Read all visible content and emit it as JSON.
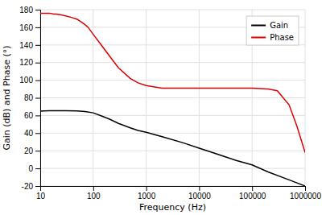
{
  "chart_data": {
    "type": "line",
    "xlabel": "Frequency (Hz)",
    "ylabel": "Gain (dB) and Phase (°)",
    "log": "x",
    "xlim": [
      10,
      1000000
    ],
    "ylim": [
      -20,
      180
    ],
    "xticks": [
      10,
      100,
      1000,
      10000,
      100000,
      1000000
    ],
    "yticks": [
      -20,
      0,
      20,
      40,
      60,
      80,
      100,
      120,
      140,
      160,
      180
    ],
    "grid": true,
    "legend": "upper right",
    "series": [
      {
        "name": "Gain",
        "color": "#000000",
        "x": [
          10,
          12,
          15,
          20,
          30,
          50,
          70,
          100,
          150,
          200,
          300,
          500,
          700,
          1000,
          2000,
          5000,
          10000,
          20000,
          50000,
          100000,
          200000,
          500000,
          1000000
        ],
        "values": [
          65,
          65.2,
          65.3,
          65.3,
          65.3,
          65.2,
          64.5,
          63,
          59,
          56,
          51,
          46,
          43,
          41,
          36,
          29,
          23,
          17,
          9,
          4,
          -4,
          -13,
          -20
        ]
      },
      {
        "name": "Phase",
        "color": "#dd0000",
        "x": [
          10,
          12,
          15,
          18,
          20,
          25,
          30,
          40,
          50,
          60,
          70,
          80,
          100,
          150,
          200,
          300,
          500,
          700,
          1000,
          2000,
          3000,
          5000,
          7000,
          10000,
          20000,
          50000,
          100000,
          200000,
          300000,
          500000,
          700000,
          1000000
        ],
        "values": [
          176,
          176,
          176,
          175,
          175,
          174,
          173,
          171,
          169,
          166,
          163,
          160,
          152,
          138,
          128,
          114,
          102,
          97,
          94,
          91,
          91,
          91,
          91,
          91,
          91,
          91,
          91,
          90,
          88,
          72,
          48,
          18
        ]
      }
    ]
  }
}
